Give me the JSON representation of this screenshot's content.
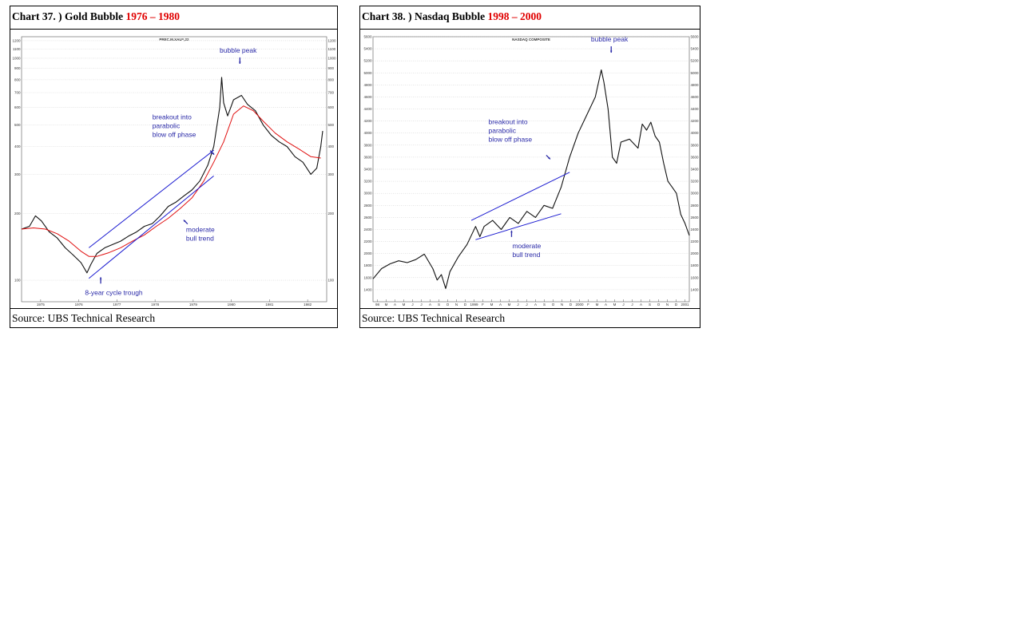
{
  "chart_data": [
    {
      "type": "line",
      "title_prefix": "Chart 37. ) Gold Bubble ",
      "title_years": "1976 – 1980",
      "chart_header": "PREC.M.XAU=,22",
      "source": "Source: UBS Technical Research",
      "log_scale": true,
      "ylim": [
        80,
        1250
      ],
      "y_ticks": [
        100,
        200,
        300,
        400,
        500,
        600,
        700,
        800,
        900,
        1000,
        1100,
        1200
      ],
      "x_tick_labels": [
        "1975",
        "1976",
        "1977",
        "1978",
        "1979",
        "1980",
        "1981",
        "1982"
      ],
      "x_range": [
        1975.0,
        1982.7
      ],
      "grid": true,
      "series": [
        {
          "kind": "price",
          "color": "#111111",
          "points": [
            [
              1975.0,
              170
            ],
            [
              1975.2,
              175
            ],
            [
              1975.35,
              195
            ],
            [
              1975.5,
              185
            ],
            [
              1975.7,
              165
            ],
            [
              1975.9,
              155
            ],
            [
              1976.1,
              140
            ],
            [
              1976.3,
              130
            ],
            [
              1976.5,
              120
            ],
            [
              1976.65,
              108
            ],
            [
              1976.75,
              118
            ],
            [
              1976.9,
              132
            ],
            [
              1977.1,
              140
            ],
            [
              1977.3,
              145
            ],
            [
              1977.5,
              150
            ],
            [
              1977.7,
              158
            ],
            [
              1977.9,
              165
            ],
            [
              1978.1,
              175
            ],
            [
              1978.3,
              180
            ],
            [
              1978.5,
              195
            ],
            [
              1978.7,
              215
            ],
            [
              1978.9,
              225
            ],
            [
              1979.1,
              240
            ],
            [
              1979.3,
              255
            ],
            [
              1979.5,
              280
            ],
            [
              1979.7,
              330
            ],
            [
              1979.85,
              400
            ],
            [
              1980.0,
              600
            ],
            [
              1980.05,
              820
            ],
            [
              1980.1,
              630
            ],
            [
              1980.2,
              550
            ],
            [
              1980.35,
              650
            ],
            [
              1980.55,
              680
            ],
            [
              1980.7,
              620
            ],
            [
              1980.9,
              580
            ],
            [
              1981.1,
              500
            ],
            [
              1981.3,
              450
            ],
            [
              1981.5,
              420
            ],
            [
              1981.7,
              400
            ],
            [
              1981.9,
              360
            ],
            [
              1982.1,
              340
            ],
            [
              1982.3,
              300
            ],
            [
              1982.45,
              320
            ],
            [
              1982.55,
              400
            ],
            [
              1982.6,
              470
            ]
          ]
        },
        {
          "kind": "moving-average",
          "color": "#e01010",
          "points": [
            [
              1975.0,
              170
            ],
            [
              1975.3,
              172
            ],
            [
              1975.6,
              170
            ],
            [
              1975.9,
              162
            ],
            [
              1976.2,
              150
            ],
            [
              1976.5,
              135
            ],
            [
              1976.7,
              128
            ],
            [
              1976.9,
              128
            ],
            [
              1977.2,
              133
            ],
            [
              1977.5,
              140
            ],
            [
              1977.8,
              150
            ],
            [
              1978.1,
              160
            ],
            [
              1978.4,
              175
            ],
            [
              1978.7,
              190
            ],
            [
              1979.0,
              210
            ],
            [
              1979.3,
              235
            ],
            [
              1979.6,
              280
            ],
            [
              1979.85,
              340
            ],
            [
              1980.1,
              420
            ],
            [
              1980.35,
              560
            ],
            [
              1980.6,
              610
            ],
            [
              1980.85,
              580
            ],
            [
              1981.1,
              520
            ],
            [
              1981.4,
              460
            ],
            [
              1981.7,
              420
            ],
            [
              1982.0,
              390
            ],
            [
              1982.3,
              360
            ],
            [
              1982.55,
              355
            ]
          ]
        },
        {
          "kind": "trend-line",
          "color": "#1a1ad0",
          "points": [
            [
              1976.7,
              140
            ],
            [
              1979.85,
              385
            ]
          ]
        },
        {
          "kind": "trend-line",
          "color": "#1a1ad0",
          "points": [
            [
              1976.7,
              102
            ],
            [
              1979.85,
              295
            ]
          ]
        }
      ],
      "annotations": [
        {
          "lines": [
            "bubble peak"
          ],
          "x": 1980.0,
          "y": 1060,
          "arrow": "down"
        },
        {
          "lines": [
            "breakout into",
            "parabolic",
            "blow off phase"
          ],
          "x": 1978.3,
          "y": 530,
          "arrow": "down-right"
        },
        {
          "lines": [
            "moderate",
            "bull trend"
          ],
          "x": 1979.15,
          "y": 165,
          "arrow": "up-left"
        },
        {
          "lines": [
            "8-year cycle trough"
          ],
          "x": 1976.6,
          "y": 86,
          "arrow": "up"
        }
      ]
    },
    {
      "type": "line",
      "title_prefix": "Chart 38. ) Nasdaq Bubble ",
      "title_years": "1998 – 2000",
      "chart_header": "NASDAQ COMPOSITE",
      "source": "Source: UBS Technical Research",
      "ylim": [
        1200,
        5600
      ],
      "y_ticks": [
        1400,
        1600,
        1800,
        2000,
        2200,
        2400,
        2600,
        2800,
        3000,
        3200,
        3400,
        3600,
        3800,
        4000,
        4200,
        4400,
        4600,
        4800,
        5000,
        5200,
        5400,
        5600
      ],
      "x_tick_labels": [
        "98",
        "M",
        "A",
        "M",
        "J",
        "J",
        "A",
        "S",
        "O",
        "N",
        "D",
        "1999",
        "F",
        "M",
        "A",
        "M",
        "J",
        "J",
        "A",
        "S",
        "O",
        "N",
        "D",
        "2000",
        "F",
        "M",
        "A",
        "M",
        "J",
        "J",
        "A",
        "S",
        "O",
        "N",
        "D",
        "2001"
      ],
      "x_range": [
        0,
        37
      ],
      "grid": true,
      "series": [
        {
          "kind": "price",
          "color": "#111111",
          "points": [
            [
              0.0,
              1580
            ],
            [
              1.0,
              1750
            ],
            [
              2.0,
              1830
            ],
            [
              3.0,
              1880
            ],
            [
              4.0,
              1850
            ],
            [
              5.0,
              1900
            ],
            [
              6.0,
              1990
            ],
            [
              7.0,
              1750
            ],
            [
              7.5,
              1560
            ],
            [
              8.0,
              1650
            ],
            [
              8.5,
              1420
            ],
            [
              9.0,
              1700
            ],
            [
              10.0,
              1950
            ],
            [
              11.0,
              2150
            ],
            [
              12.0,
              2450
            ],
            [
              12.5,
              2280
            ],
            [
              13.0,
              2450
            ],
            [
              14.0,
              2550
            ],
            [
              15.0,
              2400
            ],
            [
              16.0,
              2600
            ],
            [
              17.0,
              2500
            ],
            [
              18.0,
              2700
            ],
            [
              19.0,
              2600
            ],
            [
              20.0,
              2800
            ],
            [
              21.0,
              2750
            ],
            [
              22.0,
              3100
            ],
            [
              23.0,
              3600
            ],
            [
              24.0,
              4000
            ],
            [
              25.0,
              4300
            ],
            [
              26.0,
              4600
            ],
            [
              26.7,
              5050
            ],
            [
              27.0,
              4850
            ],
            [
              27.5,
              4400
            ],
            [
              28.0,
              3600
            ],
            [
              28.5,
              3500
            ],
            [
              29.0,
              3850
            ],
            [
              30.0,
              3900
            ],
            [
              31.0,
              3750
            ],
            [
              31.5,
              4150
            ],
            [
              32.0,
              4050
            ],
            [
              32.5,
              4180
            ],
            [
              33.0,
              3950
            ],
            [
              33.5,
              3850
            ],
            [
              34.0,
              3500
            ],
            [
              34.5,
              3200
            ],
            [
              35.0,
              3100
            ],
            [
              35.5,
              3000
            ],
            [
              36.0,
              2650
            ],
            [
              36.5,
              2500
            ],
            [
              37.0,
              2300
            ]
          ]
        },
        {
          "kind": "trend-line",
          "color": "#1a1ad0",
          "points": [
            [
              11.5,
              2550
            ],
            [
              23.0,
              3350
            ]
          ]
        },
        {
          "kind": "trend-line",
          "color": "#1a1ad0",
          "points": [
            [
              12.0,
              2230
            ],
            [
              22.0,
              2660
            ]
          ]
        }
      ],
      "annotations": [
        {
          "lines": [
            "bubble peak"
          ],
          "x": 25.5,
          "y": 5520,
          "arrow": "down"
        },
        {
          "lines": [
            "breakout into",
            "parabolic",
            "blow off phase"
          ],
          "x": 13.5,
          "y": 4150,
          "arrow": "down-right"
        },
        {
          "lines": [
            "moderate",
            "bull trend"
          ],
          "x": 16.3,
          "y": 2090,
          "arrow": "up"
        }
      ]
    }
  ]
}
